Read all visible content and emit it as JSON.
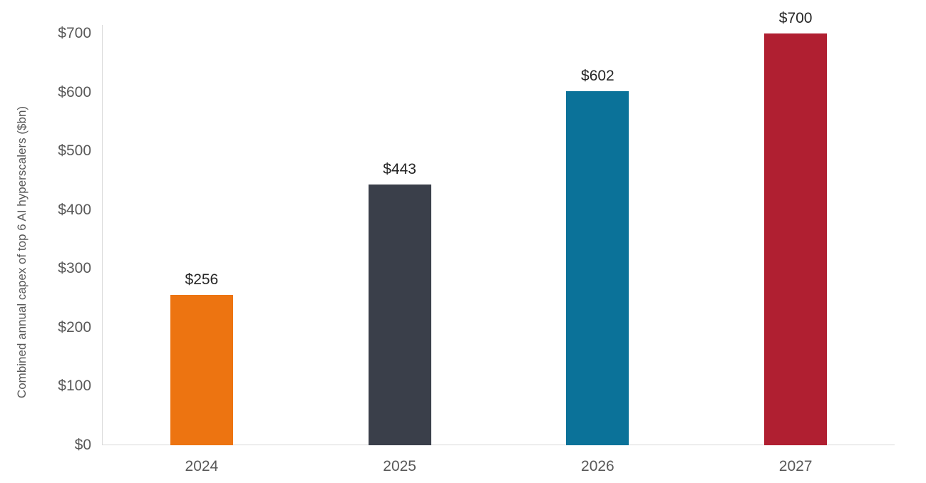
{
  "chart_data": {
    "type": "bar",
    "title": "",
    "xlabel": "",
    "ylabel": "Combined annual capex of top 6 AI hyperscalers ($bn)",
    "categories": [
      "2024",
      "2025",
      "2026",
      "2027"
    ],
    "values": [
      256,
      443,
      602,
      700
    ],
    "data_labels": [
      "$256",
      "$443",
      "$602",
      "$700"
    ],
    "bar_colors": [
      "#ED7411",
      "#3A3F4A",
      "#0B7299",
      "#B01F31"
    ],
    "ylim": [
      0,
      700
    ],
    "yticks": [
      0,
      100,
      200,
      300,
      400,
      500,
      600,
      700
    ],
    "ytick_labels": [
      "$0",
      "$100",
      "$200",
      "$300",
      "$400",
      "$500",
      "$600",
      "$700"
    ],
    "grid": false,
    "legend": false
  },
  "colors": {
    "background": "#FFFFFF",
    "axis_line": "#D9D9D9",
    "tick_text": "#595959",
    "data_label_text": "#262626"
  }
}
